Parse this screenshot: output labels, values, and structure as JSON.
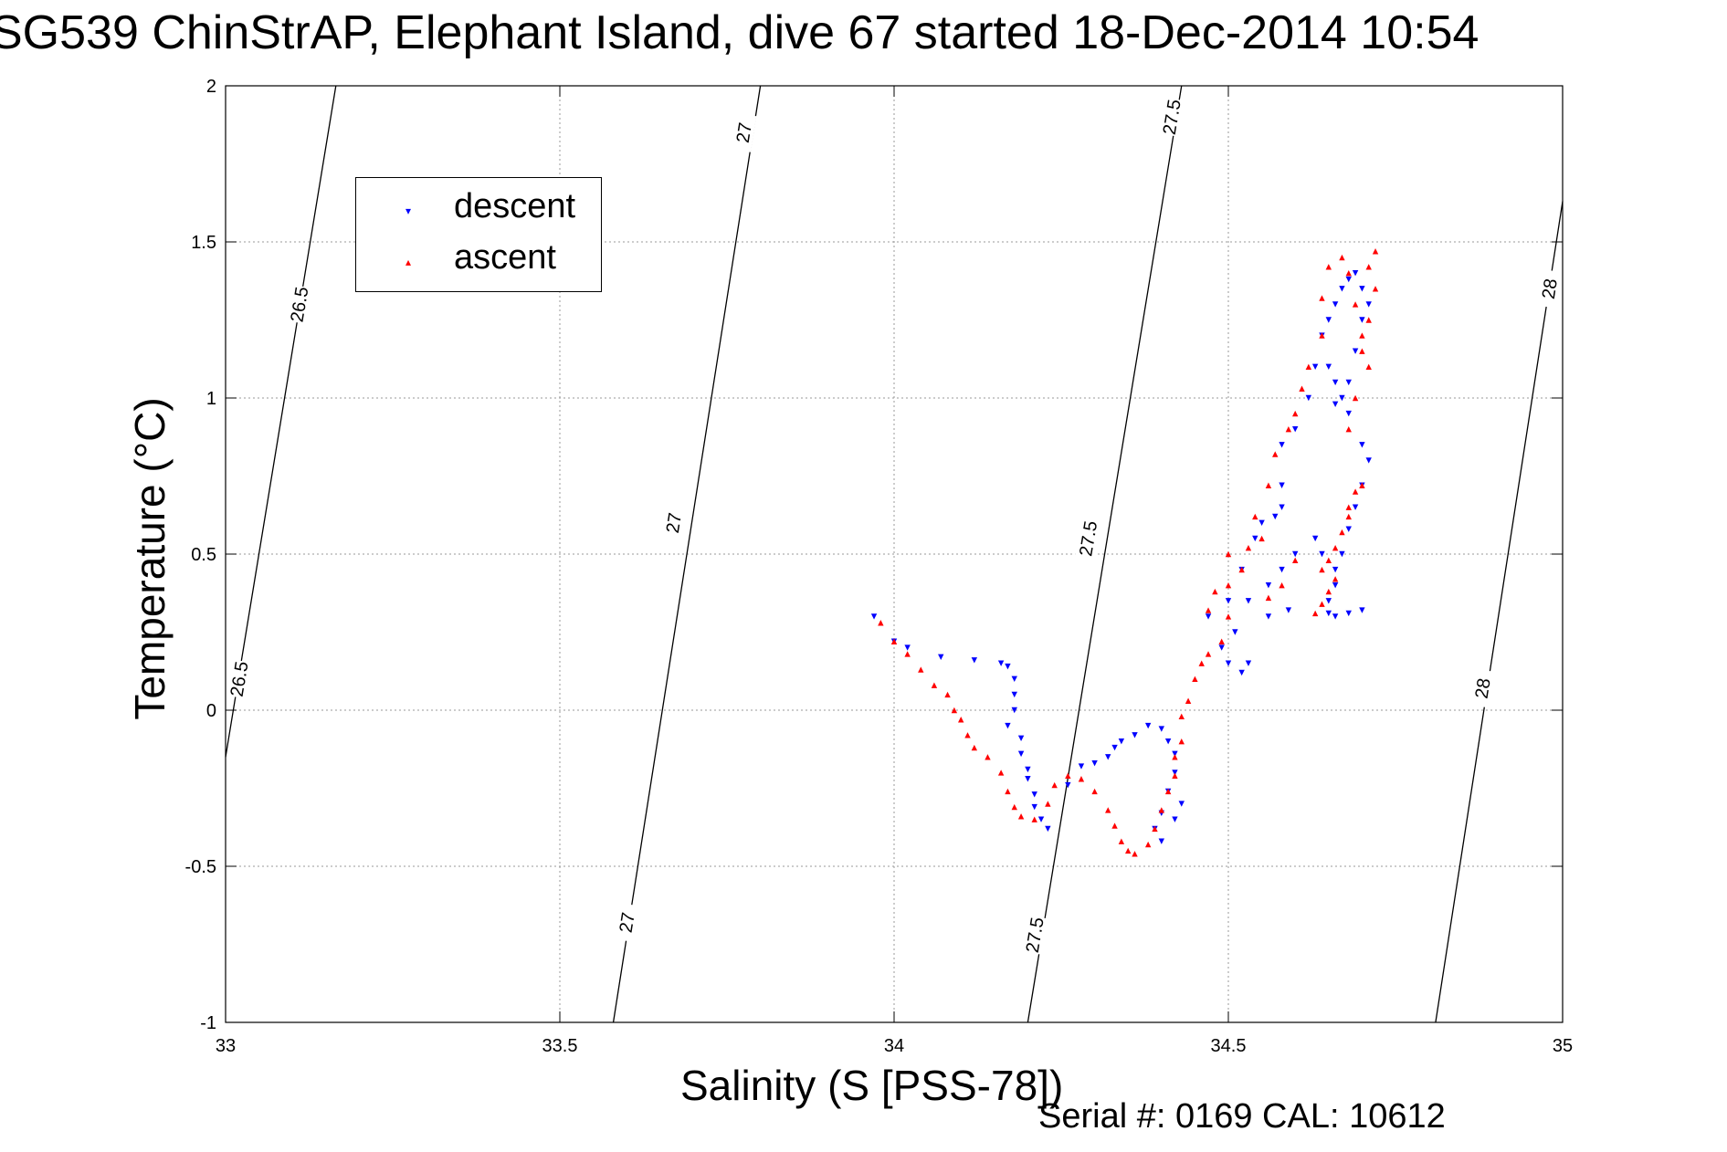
{
  "figure": {
    "title": "SG539 ChinStrAP, Elephant Island, dive 67 started 18-Dec-2014 10:54",
    "footer": "Serial #: 0169 CAL: 10612"
  },
  "chart_data": {
    "type": "scatter",
    "title": "SG539 ChinStrAP, Elephant Island, dive 67 started 18-Dec-2014 10:54",
    "xlabel": "Salinity (S [PSS-78])",
    "ylabel": "Temperature (°C)",
    "xlim": [
      33,
      35
    ],
    "ylim": [
      -1,
      2
    ],
    "x_ticks": [
      33,
      33.5,
      34,
      34.5,
      35
    ],
    "x_tick_labels": [
      "33",
      "33.5",
      "34",
      "34.5",
      "35"
    ],
    "y_ticks": [
      -1,
      -0.5,
      0,
      0.5,
      1,
      1.5,
      2
    ],
    "y_tick_labels": [
      "-1",
      "-0.5",
      "0",
      "0.5",
      "1",
      "1.5",
      "2"
    ],
    "grid": true,
    "legend": {
      "position": "top-left",
      "entries": [
        "descent",
        "ascent"
      ]
    },
    "colors": {
      "descent": "#0000ff",
      "ascent": "#ff0000",
      "contour": "#000000"
    },
    "series": [
      {
        "name": "descent",
        "marker": "triangle-down",
        "color": "#0000ff",
        "points": [
          [
            33.97,
            0.3
          ],
          [
            34.0,
            0.22
          ],
          [
            34.02,
            0.2
          ],
          [
            34.07,
            0.17
          ],
          [
            34.12,
            0.16
          ],
          [
            34.16,
            0.15
          ],
          [
            34.17,
            0.14
          ],
          [
            34.18,
            0.1
          ],
          [
            34.18,
            0.05
          ],
          [
            34.18,
            0.0
          ],
          [
            34.17,
            -0.05
          ],
          [
            34.19,
            -0.09
          ],
          [
            34.19,
            -0.14
          ],
          [
            34.2,
            -0.19
          ],
          [
            34.2,
            -0.22
          ],
          [
            34.21,
            -0.27
          ],
          [
            34.21,
            -0.31
          ],
          [
            34.22,
            -0.35
          ],
          [
            34.23,
            -0.38
          ],
          [
            34.26,
            -0.24
          ],
          [
            34.28,
            -0.18
          ],
          [
            34.3,
            -0.17
          ],
          [
            34.32,
            -0.15
          ],
          [
            34.33,
            -0.12
          ],
          [
            34.34,
            -0.1
          ],
          [
            34.36,
            -0.08
          ],
          [
            34.38,
            -0.05
          ],
          [
            34.4,
            -0.06
          ],
          [
            34.41,
            -0.1
          ],
          [
            34.42,
            -0.14
          ],
          [
            34.42,
            -0.2
          ],
          [
            34.41,
            -0.26
          ],
          [
            34.4,
            -0.33
          ],
          [
            34.39,
            -0.38
          ],
          [
            34.4,
            -0.42
          ],
          [
            34.42,
            -0.35
          ],
          [
            34.43,
            -0.3
          ],
          [
            34.47,
            0.3
          ],
          [
            34.49,
            0.2
          ],
          [
            34.5,
            0.15
          ],
          [
            34.52,
            0.12
          ],
          [
            34.53,
            0.15
          ],
          [
            34.51,
            0.25
          ],
          [
            34.5,
            0.35
          ],
          [
            34.52,
            0.45
          ],
          [
            34.54,
            0.55
          ],
          [
            34.57,
            0.62
          ],
          [
            34.58,
            0.72
          ],
          [
            34.58,
            0.85
          ],
          [
            34.6,
            0.9
          ],
          [
            34.62,
            1.0
          ],
          [
            34.63,
            1.1
          ],
          [
            34.64,
            1.2
          ],
          [
            34.65,
            1.25
          ],
          [
            34.66,
            1.3
          ],
          [
            34.67,
            1.35
          ],
          [
            34.68,
            1.38
          ],
          [
            34.69,
            1.4
          ],
          [
            34.7,
            1.35
          ],
          [
            34.71,
            1.3
          ],
          [
            34.7,
            1.25
          ],
          [
            34.69,
            1.15
          ],
          [
            34.68,
            1.05
          ],
          [
            34.68,
            0.95
          ],
          [
            34.67,
            1.0
          ],
          [
            34.66,
            1.05
          ],
          [
            34.65,
            1.1
          ],
          [
            34.66,
            0.98
          ],
          [
            34.7,
            0.85
          ],
          [
            34.71,
            0.8
          ],
          [
            34.7,
            0.72
          ],
          [
            34.69,
            0.65
          ],
          [
            34.68,
            0.58
          ],
          [
            34.67,
            0.5
          ],
          [
            34.66,
            0.45
          ],
          [
            34.66,
            0.4
          ],
          [
            34.65,
            0.35
          ],
          [
            34.65,
            0.31
          ],
          [
            34.66,
            0.3
          ],
          [
            34.68,
            0.31
          ],
          [
            34.7,
            0.32
          ],
          [
            34.64,
            0.5
          ],
          [
            34.63,
            0.55
          ],
          [
            34.6,
            0.5
          ],
          [
            34.58,
            0.45
          ],
          [
            34.56,
            0.4
          ],
          [
            34.53,
            0.35
          ],
          [
            34.56,
            0.3
          ],
          [
            34.59,
            0.32
          ],
          [
            34.55,
            0.6
          ],
          [
            34.58,
            0.65
          ]
        ]
      },
      {
        "name": "ascent",
        "marker": "triangle-up",
        "color": "#ff0000",
        "points": [
          [
            33.98,
            0.28
          ],
          [
            34.0,
            0.22
          ],
          [
            34.02,
            0.18
          ],
          [
            34.04,
            0.13
          ],
          [
            34.06,
            0.08
          ],
          [
            34.08,
            0.05
          ],
          [
            34.09,
            0.0
          ],
          [
            34.1,
            -0.03
          ],
          [
            34.11,
            -0.08
          ],
          [
            34.12,
            -0.12
          ],
          [
            34.14,
            -0.15
          ],
          [
            34.16,
            -0.2
          ],
          [
            34.17,
            -0.26
          ],
          [
            34.18,
            -0.31
          ],
          [
            34.19,
            -0.34
          ],
          [
            34.21,
            -0.35
          ],
          [
            34.23,
            -0.3
          ],
          [
            34.24,
            -0.24
          ],
          [
            34.26,
            -0.21
          ],
          [
            34.28,
            -0.22
          ],
          [
            34.3,
            -0.26
          ],
          [
            34.32,
            -0.32
          ],
          [
            34.33,
            -0.37
          ],
          [
            34.34,
            -0.42
          ],
          [
            34.35,
            -0.45
          ],
          [
            34.36,
            -0.46
          ],
          [
            34.38,
            -0.43
          ],
          [
            34.39,
            -0.38
          ],
          [
            34.4,
            -0.32
          ],
          [
            34.41,
            -0.26
          ],
          [
            34.42,
            -0.21
          ],
          [
            34.42,
            -0.15
          ],
          [
            34.43,
            -0.1
          ],
          [
            34.43,
            -0.02
          ],
          [
            34.44,
            0.03
          ],
          [
            34.45,
            0.1
          ],
          [
            34.46,
            0.15
          ],
          [
            34.47,
            0.18
          ],
          [
            34.49,
            0.22
          ],
          [
            34.5,
            0.3
          ],
          [
            34.5,
            0.4
          ],
          [
            34.5,
            0.5
          ],
          [
            34.52,
            0.45
          ],
          [
            34.53,
            0.52
          ],
          [
            34.54,
            0.62
          ],
          [
            34.56,
            0.72
          ],
          [
            34.57,
            0.82
          ],
          [
            34.59,
            0.9
          ],
          [
            34.6,
            0.95
          ],
          [
            34.61,
            1.03
          ],
          [
            34.62,
            1.1
          ],
          [
            34.64,
            1.2
          ],
          [
            34.64,
            1.32
          ],
          [
            34.65,
            1.42
          ],
          [
            34.67,
            1.45
          ],
          [
            34.68,
            1.4
          ],
          [
            34.69,
            1.3
          ],
          [
            34.7,
            1.2
          ],
          [
            34.71,
            1.1
          ],
          [
            34.71,
            1.25
          ],
          [
            34.72,
            1.35
          ],
          [
            34.72,
            1.47
          ],
          [
            34.71,
            1.42
          ],
          [
            34.7,
            1.15
          ],
          [
            34.69,
            1.0
          ],
          [
            34.68,
            0.9
          ],
          [
            34.69,
            0.7
          ],
          [
            34.68,
            0.62
          ],
          [
            34.67,
            0.57
          ],
          [
            34.66,
            0.52
          ],
          [
            34.65,
            0.48
          ],
          [
            34.66,
            0.42
          ],
          [
            34.65,
            0.38
          ],
          [
            34.64,
            0.34
          ],
          [
            34.63,
            0.31
          ],
          [
            34.64,
            0.45
          ],
          [
            34.68,
            0.65
          ],
          [
            34.7,
            0.72
          ],
          [
            34.6,
            0.48
          ],
          [
            34.58,
            0.4
          ],
          [
            34.56,
            0.36
          ],
          [
            34.55,
            0.55
          ],
          [
            34.48,
            0.38
          ],
          [
            34.47,
            0.32
          ]
        ]
      }
    ],
    "contours": [
      {
        "value": "26.5",
        "points": [
          [
            33.0,
            -0.15
          ],
          [
            33.165,
            2.0
          ]
        ],
        "labels": [
          [
            33.02,
            0.1
          ],
          [
            33.11,
            1.3
          ]
        ]
      },
      {
        "value": "27",
        "points": [
          [
            33.58,
            -1.0
          ],
          [
            33.8,
            2.0
          ]
        ],
        "labels": [
          [
            33.6,
            -0.68
          ],
          [
            33.67,
            0.6
          ],
          [
            33.775,
            1.85
          ]
        ]
      },
      {
        "value": "27.5",
        "points": [
          [
            34.2,
            -1.0
          ],
          [
            34.43,
            2.0
          ]
        ],
        "labels": [
          [
            34.21,
            -0.72
          ],
          [
            34.29,
            0.55
          ],
          [
            34.415,
            1.9
          ]
        ]
      },
      {
        "value": "28",
        "points": [
          [
            34.81,
            -1.0
          ],
          [
            35.0,
            1.63
          ]
        ],
        "labels": [
          [
            34.88,
            0.07
          ],
          [
            34.98,
            1.35
          ]
        ]
      }
    ]
  }
}
